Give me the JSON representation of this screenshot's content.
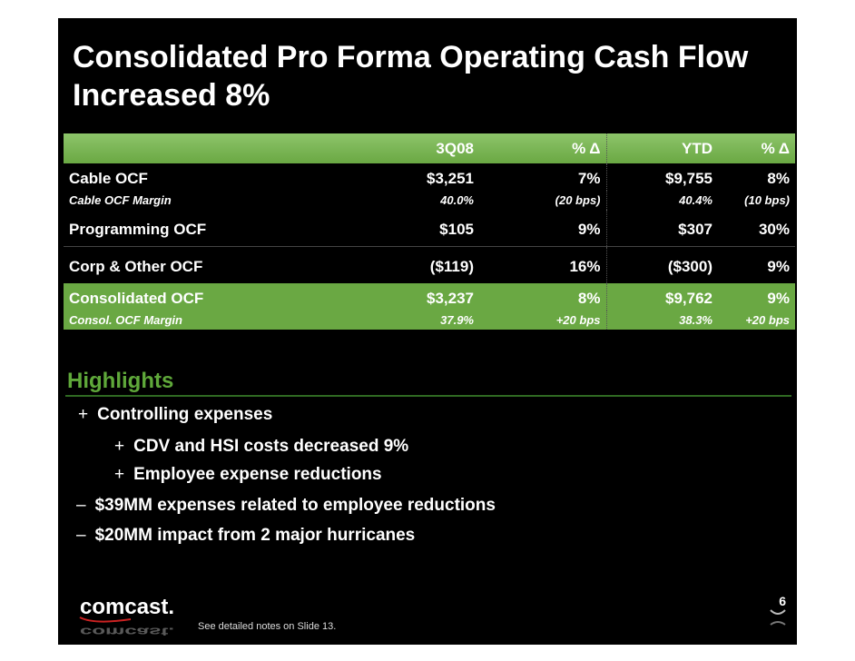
{
  "title": "Consolidated Pro Forma Operating Cash Flow Increased 8%",
  "table": {
    "headers": [
      "",
      "3Q08",
      "% Δ",
      "YTD",
      "% Δ"
    ],
    "rows": [
      {
        "label": "Cable OCF",
        "q": "$3,251",
        "qd": "7%",
        "y": "$9,755",
        "yd": "8%"
      },
      {
        "label": "Cable OCF Margin",
        "q": "40.0%",
        "qd": "(20 bps)",
        "y": "40.4%",
        "yd": "(10 bps)"
      },
      {
        "label": "Programming OCF",
        "q": "$105",
        "qd": "9%",
        "y": "$307",
        "yd": "30%"
      },
      {
        "label": "Corp & Other OCF",
        "q": "($119)",
        "qd": "16%",
        "y": "($300)",
        "yd": "9%"
      },
      {
        "label": "Consolidated OCF",
        "q": "$3,237",
        "qd": "8%",
        "y": "$9,762",
        "yd": "9%"
      },
      {
        "label": "Consol. OCF Margin",
        "q": "37.9%",
        "qd": "+20 bps",
        "y": "38.3%",
        "yd": "+20 bps"
      }
    ]
  },
  "highlights": {
    "title": "Highlights",
    "items": [
      {
        "marker": "+",
        "text": "Controlling expenses"
      },
      {
        "marker": "+",
        "text": "CDV and HSI costs decreased 9%"
      },
      {
        "marker": "+",
        "text": "Employee expense reductions"
      },
      {
        "marker": "–",
        "text": "$39MM expenses related to employee reductions"
      },
      {
        "marker": "–",
        "text": "$20MM impact from 2 major hurricanes"
      }
    ]
  },
  "footer": {
    "logo_text": "comcast.",
    "note": "See detailed notes on Slide 13.",
    "page_number": "6"
  },
  "colors": {
    "background": "#000000",
    "accent_green": "#6aa843",
    "highlight_title": "#5fa83a",
    "text": "#ffffff"
  }
}
